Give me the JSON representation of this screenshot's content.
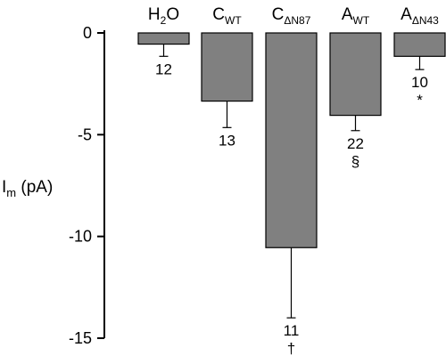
{
  "chart_data": {
    "type": "bar",
    "ylabel": {
      "base": "I",
      "sub": "m",
      "unit": " (pA)"
    },
    "ylim": [
      -15,
      0
    ],
    "yticks": [
      0,
      -5,
      -10,
      -15
    ],
    "ytick_labels": [
      "0",
      "-5",
      "-10",
      "-15"
    ],
    "colors": {
      "bar": "#808080",
      "stroke": "#000000"
    },
    "categories": [
      {
        "base": "H",
        "sub": "2",
        "tail": "O",
        "value": -0.55,
        "error": 0.6,
        "n": "12",
        "mark": ""
      },
      {
        "base": "C",
        "sub": "WT",
        "tail": "",
        "value": -3.35,
        "error": 1.3,
        "n": "13",
        "mark": ""
      },
      {
        "base": "C",
        "sub": "ΔN87",
        "tail": "",
        "value": -10.55,
        "error": 3.45,
        "n": "11",
        "mark": "†"
      },
      {
        "base": "A",
        "sub": "WT",
        "tail": "",
        "value": -4.05,
        "error": 0.75,
        "n": "22",
        "mark": "§"
      },
      {
        "base": "A",
        "sub": "ΔN43",
        "tail": "",
        "value": -1.15,
        "error": 0.65,
        "n": "10",
        "mark": "*"
      }
    ]
  }
}
